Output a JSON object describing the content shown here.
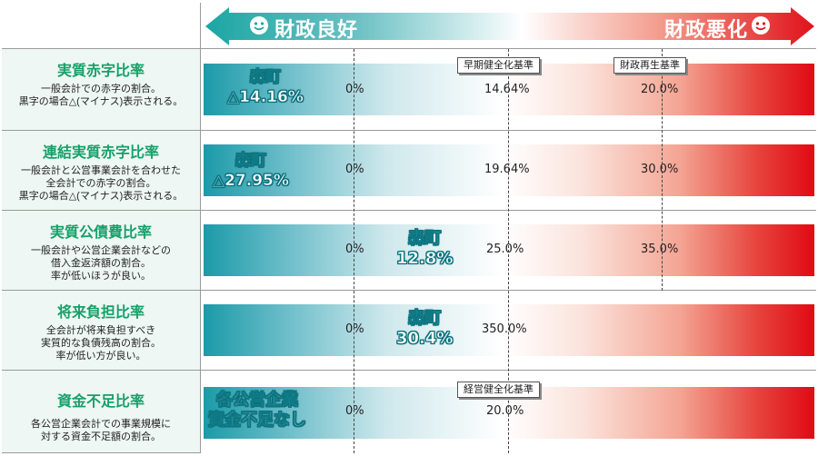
{
  "header": {
    "left_label": "財政良好",
    "right_label": "財政悪化",
    "colors": {
      "arrow_left": "#1ba6a3",
      "arrow_right": "#e0121a",
      "title_green": "#18a06a"
    },
    "icons": {
      "left": "smile-face-icon",
      "right": "smile-face-icon"
    }
  },
  "standards": {
    "early": "早期健全化基準",
    "rebuild": "財政再生基準",
    "management": "経営健全化基準"
  },
  "chart_data": {
    "type": "bar",
    "rows": [
      {
        "title": "実質赤字比率",
        "description": "一般会計での赤字の割合。\n黒字の場合△(マイナス)表示される。",
        "town_label": "森町",
        "town_value": "△14.16%",
        "zero": "0%",
        "early_standard": "14.64%",
        "rebuild_standard": "20.0%"
      },
      {
        "title": "連結実質赤字比率",
        "description": "一般会計と公営事業会計を合わせた\n全会計での赤字の割合。\n黒字の場合△(マイナス)表示される。",
        "town_label": "森町",
        "town_value": "△27.95%",
        "zero": "0%",
        "early_standard": "19.64%",
        "rebuild_standard": "30.0%"
      },
      {
        "title": "実質公債費比率",
        "description": "一般会計や公営企業会計などの\n借入金返済額の割合。\n率が低いほうが良い。",
        "town_label": "森町",
        "town_value": "12.8%",
        "zero": "0%",
        "early_standard": "25.0%",
        "rebuild_standard": "35.0%"
      },
      {
        "title": "将来負担比率",
        "description": "全会計が将来負担すべき\n実質的な負債残高の割合。\n率が低い方が良い。",
        "town_label": "森町",
        "town_value": "30.4%",
        "zero": "0%",
        "early_standard": "350.0%"
      },
      {
        "title": "資金不足比率",
        "description": "各公営企業会計での事業規模に\n対する資金不足額の割合。",
        "town_label": "各公営企業",
        "town_value": "資金不足なし",
        "zero": "0%",
        "management_standard": "20.0%"
      }
    ]
  }
}
